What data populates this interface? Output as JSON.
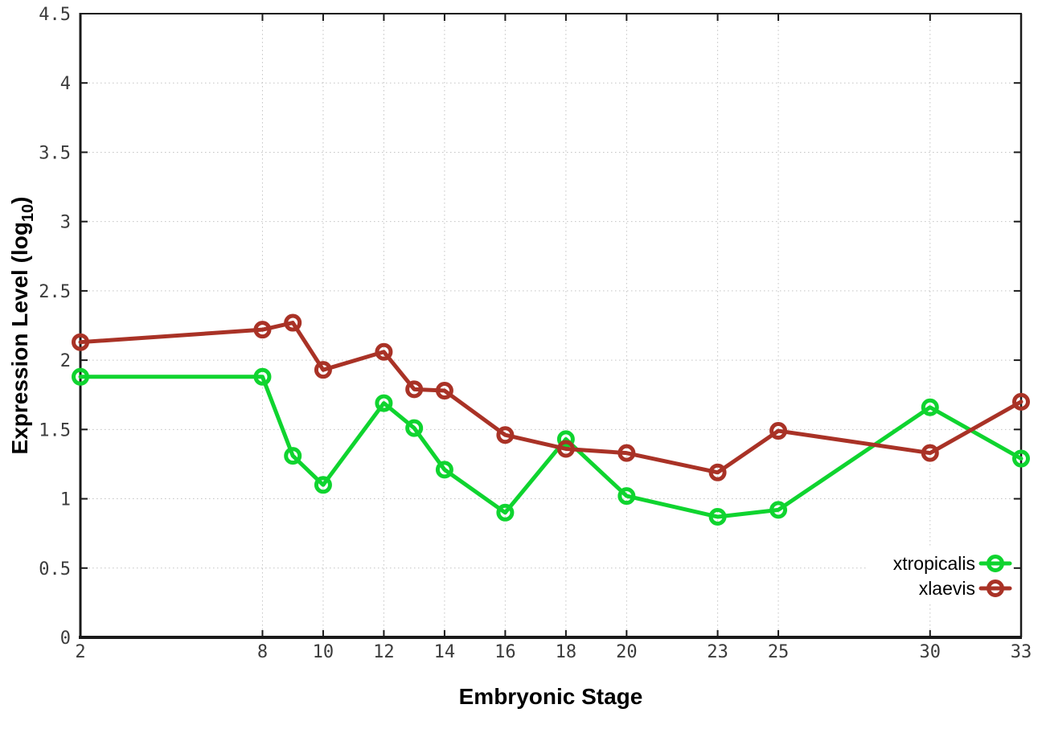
{
  "chart_data": {
    "type": "line",
    "title": "",
    "xlabel": "Embryonic Stage",
    "ylabel": "Expression Level (log10)",
    "ylabel_parts": {
      "prefix": "Expression Level (log",
      "sub": "10",
      "suffix": ")"
    },
    "x": [
      2,
      8,
      9,
      10,
      12,
      13,
      14,
      16,
      18,
      20,
      23,
      25,
      30,
      33
    ],
    "series": [
      {
        "name": "xtropicalis",
        "color": "#0fd42f",
        "values": [
          1.88,
          1.88,
          1.31,
          1.1,
          1.69,
          1.51,
          1.21,
          0.9,
          1.43,
          1.02,
          0.87,
          0.92,
          1.66,
          1.29
        ]
      },
      {
        "name": "xlaevis",
        "color": "#a93226",
        "values": [
          2.13,
          2.22,
          2.27,
          1.93,
          2.06,
          1.79,
          1.78,
          1.46,
          1.36,
          1.33,
          1.19,
          1.49,
          1.33,
          1.7
        ]
      }
    ],
    "xlim": [
      2,
      33
    ],
    "ylim": [
      0,
      4.5
    ],
    "xticks": [
      2,
      8,
      10,
      12,
      14,
      16,
      18,
      20,
      23,
      25,
      30,
      33
    ],
    "yticks": [
      0,
      0.5,
      1,
      1.5,
      2,
      2.5,
      3,
      3.5,
      4,
      4.5
    ],
    "ytick_labels": [
      "0",
      "0.5",
      "1",
      "1.5",
      "2",
      "2.5",
      "3",
      "3.5",
      "4",
      "4.5"
    ],
    "grid": true,
    "legend_position": "inside-bottom-right",
    "marker_style": "open-circle",
    "colors": {
      "grid": "#c3c3c3",
      "frame": "#1a1a1a",
      "tick_label": "#3c3c3c",
      "axis_title": "#000000",
      "background": "#ffffff"
    }
  }
}
